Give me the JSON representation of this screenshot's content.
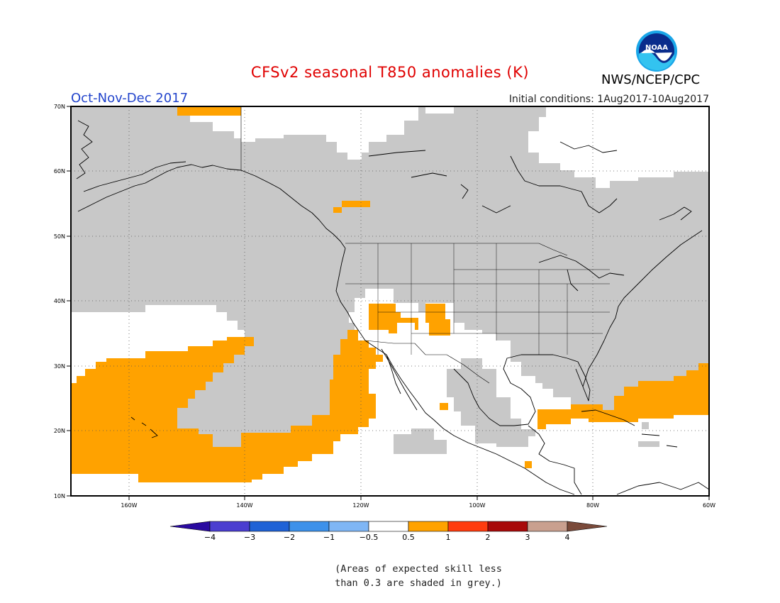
{
  "title": "CFSv2 seasonal T850 anomalies (K)",
  "season": "Oct-Nov-Dec 2017",
  "initial_conditions": "Initial conditions: 1Aug2017-10Aug2017",
  "agency": "NWS/NCEP/CPC",
  "logo_text": "NOAA",
  "note_line1": "(Areas of expected skill less",
  "note_line2": "than 0.3 are shaded in grey.)",
  "colors": {
    "title": "#e00000",
    "season": "#2244cc",
    "grey_low_skill": "#c8c8c8",
    "anomaly_pos": "#ffa200",
    "land_outline": "#000000"
  },
  "map": {
    "lon_range": [
      -172,
      -60
    ],
    "lat_range": [
      10,
      70
    ],
    "lat_labels": [
      "10N",
      "20N",
      "30N",
      "40N",
      "50N",
      "60N",
      "70N"
    ],
    "lon_labels": [
      "160W",
      "140W",
      "120W",
      "100W",
      "80W",
      "60W"
    ]
  },
  "colorbar": {
    "labels": [
      "−4",
      "−3",
      "−2",
      "−1",
      "−0.5",
      "0.5",
      "1",
      "2",
      "3",
      "4"
    ],
    "colors": [
      "#2a0aa0",
      "#4b3ed0",
      "#1f62d6",
      "#3d91ea",
      "#7fb6f5",
      "#ffffff",
      "#ffa200",
      "#ff3c0f",
      "#a80a0a",
      "#c9a08f",
      "#7a4a3a"
    ]
  }
}
